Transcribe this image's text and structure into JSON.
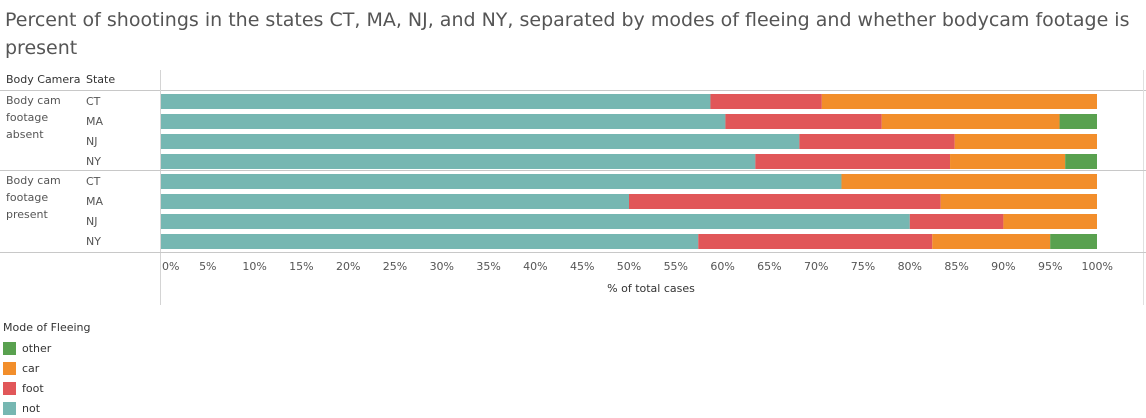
{
  "title": "Percent of shootings in the states CT, MA, NJ, and NY, separated by modes of fleeing and whether bodycam footage is present",
  "chart_data": {
    "type": "bar",
    "orientation": "horizontal",
    "stacked": true,
    "title": "Percent of shootings in the states CT, MA, NJ, and NY, separated by modes of fleeing and whether bodycam footage is present",
    "row_headers": [
      "Body Camera",
      "State"
    ],
    "xlabel": "% of total cases",
    "xlim": [
      0,
      100
    ],
    "x_ticks": [
      "0%",
      "5%",
      "10%",
      "15%",
      "20%",
      "25%",
      "30%",
      "35%",
      "40%",
      "45%",
      "50%",
      "55%",
      "60%",
      "65%",
      "70%",
      "75%",
      "80%",
      "85%",
      "90%",
      "95%",
      "100%"
    ],
    "groups": [
      {
        "label": "Body cam footage absent",
        "label_lines": [
          "Body cam",
          "footage",
          "absent"
        ],
        "states": [
          "CT",
          "MA",
          "NJ",
          "NY"
        ]
      },
      {
        "label": "Body cam footage present",
        "label_lines": [
          "Body cam",
          "footage",
          "present"
        ],
        "states": [
          "CT",
          "MA",
          "NJ",
          "NY"
        ]
      }
    ],
    "series": [
      {
        "name": "not",
        "color": "#76b7b2",
        "values": [
          58.7,
          60.3,
          68.2,
          63.5,
          72.7,
          50.0,
          80.0,
          57.4
        ]
      },
      {
        "name": "foot",
        "color": "#e15759",
        "values": [
          11.9,
          16.7,
          16.6,
          20.8,
          0.0,
          33.3,
          10.0,
          25.0
        ]
      },
      {
        "name": "car",
        "color": "#f28e2b",
        "values": [
          29.4,
          19.0,
          15.2,
          12.3,
          27.3,
          16.7,
          10.0,
          12.6
        ]
      },
      {
        "name": "other",
        "color": "#59a14f",
        "values": [
          0.0,
          4.0,
          0.0,
          3.4,
          0.0,
          0.0,
          0.0,
          5.0
        ]
      }
    ],
    "grid": false,
    "legend": {
      "title": "Mode of Fleeing",
      "position": "bottom-left",
      "order": [
        "other",
        "car",
        "foot",
        "not"
      ]
    }
  }
}
